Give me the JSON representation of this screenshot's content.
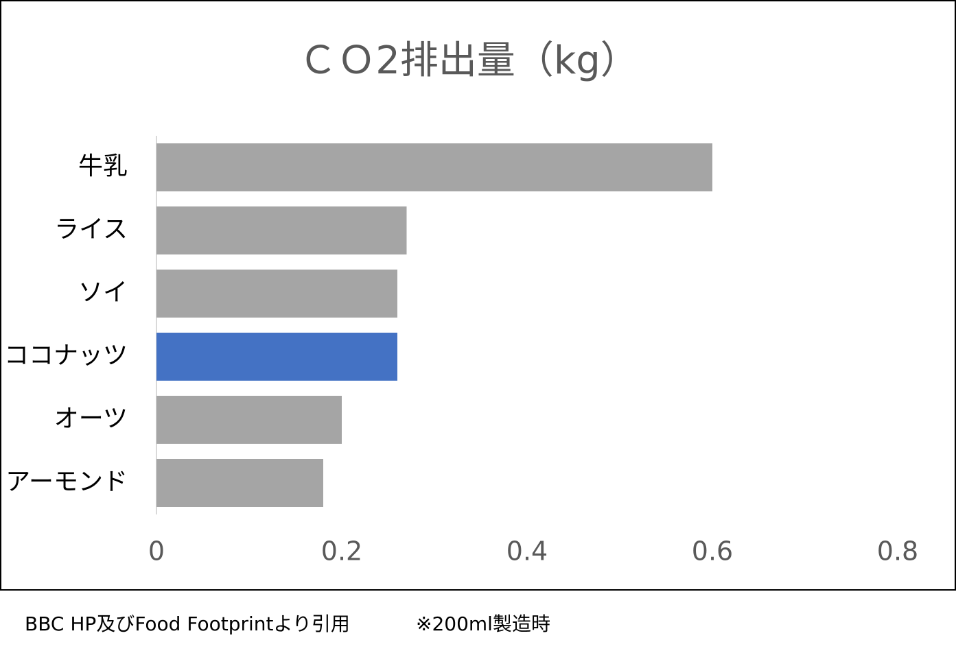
{
  "chart_data": {
    "type": "bar",
    "orientation": "horizontal",
    "title": "ＣＯ2排出量（kg）",
    "categories": [
      "牛乳",
      "ライス",
      "ソイ",
      "ココナッツ",
      "オーツ",
      "アーモンド"
    ],
    "values": [
      0.6,
      0.27,
      0.26,
      0.26,
      0.2,
      0.18
    ],
    "colors": [
      "#a5a5a5",
      "#a5a5a5",
      "#a5a5a5",
      "#4472c4",
      "#a5a5a5",
      "#a5a5a5"
    ],
    "xlim": [
      0,
      0.8
    ],
    "xticks": [
      0,
      0.2,
      0.4,
      0.6,
      0.8
    ],
    "grid": false
  },
  "footer": {
    "source": "BBC HP及びFood Footprintより引用",
    "note": "※200ml製造時"
  }
}
